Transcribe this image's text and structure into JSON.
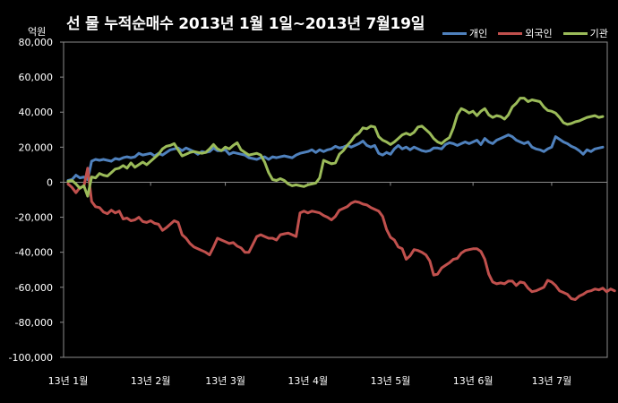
{
  "chart_data": {
    "type": "line",
    "title": "선 물 누적순매수 2013년 1월 1일~2013년 7월19일",
    "y_unit": "억원",
    "ylim": [
      -100000,
      80000
    ],
    "y_ticks": [
      80000,
      60000,
      40000,
      20000,
      0,
      -20000,
      -40000,
      -60000,
      -80000,
      -100000
    ],
    "y_tick_labels": [
      "80,000",
      "60,000",
      "40,000",
      "20,000",
      "0",
      "-20,000",
      "-40,000",
      "-60,000",
      "-80,000",
      "-100,000"
    ],
    "x_tick_labels": [
      "13년 1월",
      "13년 2월",
      "13년 3월",
      "13년 4월",
      "13년 5월",
      "13년 6월",
      "13년 7월"
    ],
    "x_tick_positions": [
      0,
      21,
      40,
      61,
      82,
      103,
      123
    ],
    "x_count": 137,
    "grid": false,
    "legend_position": "top-right",
    "series": [
      {
        "name": "개인",
        "color": "#4F81BD",
        "values": [
          1000,
          1500,
          4000,
          2500,
          3000,
          1500,
          12000,
          13000,
          12500,
          13000,
          12500,
          12000,
          13500,
          13000,
          14000,
          14500,
          14000,
          14500,
          16500,
          15500,
          16000,
          16500,
          15000,
          16500,
          15500,
          17000,
          18500,
          19000,
          19500,
          18000,
          19500,
          18500,
          17500,
          16000,
          17500,
          17000,
          17500,
          19500,
          18000,
          18000,
          18500,
          16000,
          17000,
          16500,
          16000,
          15500,
          14000,
          13500,
          13000,
          14000,
          14500,
          13000,
          14500,
          14000,
          14500,
          15000,
          14500,
          14000,
          15500,
          16500,
          17000,
          17500,
          18500,
          17000,
          18500,
          17500,
          18500,
          19000,
          20500,
          19500,
          20000,
          21000,
          20000,
          21000,
          22000,
          23500,
          21000,
          20000,
          21000,
          16500,
          15500,
          17000,
          16000,
          19000,
          21000,
          19000,
          20000,
          18500,
          20000,
          19000,
          18000,
          17500,
          18000,
          19500,
          19500,
          19000,
          21500,
          22500,
          22000,
          21000,
          22000,
          23000,
          22000,
          23000,
          24000,
          21500,
          25000,
          23000,
          22000,
          24000,
          25000,
          26000,
          27000,
          26000,
          24000,
          23000,
          22000,
          23000,
          20000,
          19000,
          18500,
          17500,
          19000,
          20000,
          26000,
          24500,
          23000,
          22000,
          20500,
          19500,
          18000,
          16000,
          18500,
          17500,
          19000,
          19500,
          20000
        ]
      },
      {
        "name": "외국인",
        "color": "#C0504D",
        "values": [
          -1000,
          -3000,
          -6000,
          -3000,
          -2500,
          8000,
          -11000,
          -14000,
          -14500,
          -17000,
          -18000,
          -16000,
          -17500,
          -16500,
          -21000,
          -20500,
          -22000,
          -21500,
          -20000,
          -22500,
          -23000,
          -22000,
          -23500,
          -24000,
          -27500,
          -26000,
          -24000,
          -22000,
          -23000,
          -30000,
          -32000,
          -35000,
          -37000,
          -38000,
          -39000,
          -40000,
          -41500,
          -37000,
          -32000,
          -33000,
          -34000,
          -35000,
          -34500,
          -36500,
          -37500,
          -40000,
          -40000,
          -35500,
          -31000,
          -30000,
          -31000,
          -32000,
          -32000,
          -33000,
          -30000,
          -29500,
          -29000,
          -30000,
          -31000,
          -17500,
          -16500,
          -17500,
          -16500,
          -17000,
          -17500,
          -19000,
          -20000,
          -21500,
          -19500,
          -16000,
          -15000,
          -14000,
          -12000,
          -11000,
          -11500,
          -12500,
          -13000,
          -14500,
          -15500,
          -16500,
          -19500,
          -27000,
          -31500,
          -33000,
          -37000,
          -38000,
          -44000,
          -42000,
          -38500,
          -39000,
          -40000,
          -41500,
          -45000,
          -53000,
          -52500,
          -49000,
          -47500,
          -46000,
          -44000,
          -43500,
          -40500,
          -39000,
          -38500,
          -38000,
          -38000,
          -39500,
          -44000,
          -52500,
          -57000,
          -58000,
          -57500,
          -58000,
          -56500,
          -56500,
          -59000,
          -57000,
          -57500,
          -60500,
          -62500,
          -62000,
          -61000,
          -60000,
          -56000,
          -57000,
          -59000,
          -62000,
          -63000,
          -64000,
          -66500,
          -67000,
          -65000,
          -64000,
          -62500,
          -62000,
          -61000,
          -61500,
          -60500,
          -62500,
          -61000,
          -62000
        ]
      },
      {
        "name": "기관",
        "color": "#9BBB59",
        "values": [
          500,
          1000,
          -1000,
          -3500,
          -2000,
          -8000,
          3000,
          2500,
          5000,
          4000,
          3500,
          5500,
          7500,
          8000,
          9500,
          8000,
          11000,
          8500,
          10000,
          11500,
          10000,
          12000,
          14000,
          16000,
          19000,
          20500,
          21000,
          22000,
          18500,
          15000,
          16000,
          17000,
          17500,
          17000,
          16500,
          17000,
          19000,
          21500,
          19000,
          18000,
          20000,
          19000,
          21000,
          22500,
          18500,
          17000,
          15500,
          16000,
          16500,
          15500,
          11500,
          5500,
          1500,
          1000,
          2000,
          1000,
          -1000,
          -2000,
          -1500,
          -2000,
          -2500,
          -1500,
          -1000,
          -500,
          2500,
          12500,
          11500,
          10500,
          11000,
          16000,
          18000,
          21000,
          23500,
          26500,
          28000,
          31000,
          30500,
          32000,
          31500,
          26000,
          24000,
          23000,
          21500,
          23000,
          25000,
          27000,
          28000,
          27000,
          28500,
          31500,
          32000,
          30000,
          28000,
          25000,
          23000,
          22000,
          24000,
          25500,
          31000,
          38500,
          42000,
          41000,
          39500,
          40500,
          38000,
          40500,
          42000,
          38500,
          37000,
          38000,
          37500,
          36000,
          38500,
          43000,
          45000,
          48000,
          48000,
          46000,
          47000,
          46500,
          46000,
          43000,
          41000,
          40500,
          39500,
          37000,
          34000,
          33000,
          33500,
          34500,
          35000,
          36000,
          37000,
          37500,
          38000,
          37000,
          37500
        ]
      }
    ]
  }
}
